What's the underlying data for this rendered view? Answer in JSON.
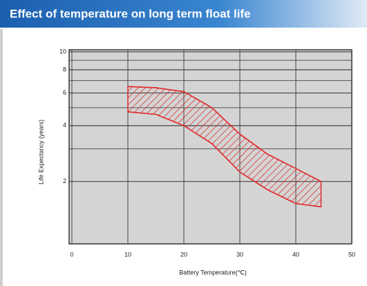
{
  "chart_data": {
    "type": "band",
    "title": "Effect of temperature on long term float life",
    "x_label": "Battery Temperature(℃)",
    "y_label": "Life Expectancy (years)",
    "x": [
      10,
      15,
      20,
      25,
      30,
      35,
      40,
      44.5
    ],
    "upper": [
      6.5,
      6.4,
      6.1,
      5.0,
      3.6,
      2.8,
      2.35,
      2.0
    ],
    "lower": [
      4.75,
      4.6,
      4.0,
      3.2,
      2.25,
      1.8,
      1.52,
      1.46
    ],
    "color": "#e02a2a",
    "xlim": [
      0,
      50
    ],
    "xticks": [
      0,
      10,
      20,
      30,
      40,
      50
    ],
    "ylim": [
      0.93,
      10
    ],
    "yticks": [
      2,
      4,
      6,
      8,
      10
    ],
    "minor_yticks": [
      3,
      5,
      7,
      9
    ],
    "log_y": true,
    "grid": true
  }
}
